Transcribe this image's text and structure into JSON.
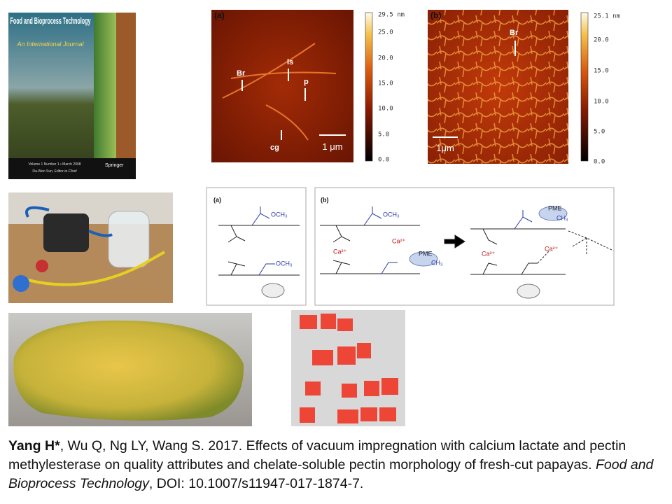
{
  "cover": {
    "title": "Food and Bioprocess Technology",
    "subtitle": "An International Journal",
    "issue": "Volume 1 Number 1 • March 2008",
    "editor": "Da-Wen Sun, Editor-in-Chief",
    "publisher": "Springer"
  },
  "afm": [
    {
      "label": "(a)",
      "colorbar_ticks": [
        "29.5 nm",
        "25.0",
        "20.0",
        "15.0",
        "10.0",
        "5.0",
        "0.0"
      ],
      "annotations": [
        "Br",
        "ls",
        "p",
        "cg"
      ],
      "scale_bar": "1 μm"
    },
    {
      "label": "(b)",
      "colorbar_ticks": [
        "25.1 nm",
        "20.0",
        "15.0",
        "10.0",
        "5.0",
        "0.0"
      ],
      "annotations": [
        "Br"
      ],
      "scale_bar": "1μm"
    }
  ],
  "scheme": {
    "a_label": "(a)",
    "b_label": "(b)",
    "ester": "OCH₃",
    "methyl": "CH₃",
    "calcium": "Ca²⁺",
    "enzyme": "PME"
  },
  "citation": {
    "lead_author": "Yang H*",
    "text": ", Wu Q, Ng LY, Wang S. 2017. Effects of vacuum impregnation with calcium lactate and pectin methylesterase on quality attributes and chelate-soluble pectin morphology of fresh-cut papayas. ",
    "journal": "Food and Bioprocess Technology",
    "doi": ", DOI: 10.1007/s11947-017-1874-7."
  }
}
